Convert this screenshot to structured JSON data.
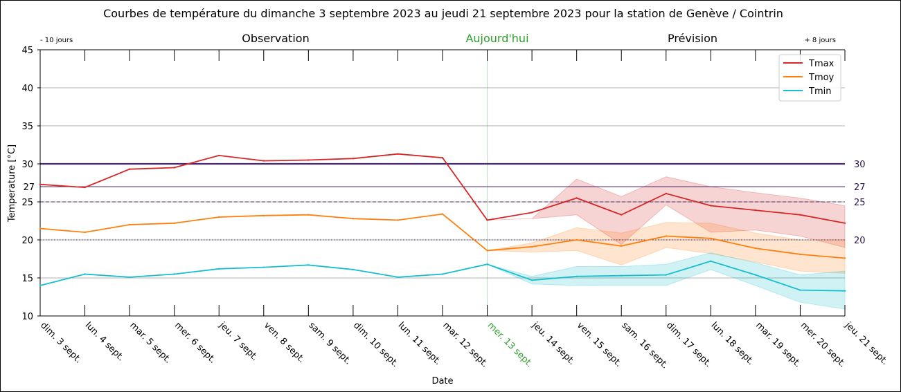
{
  "chart_data": {
    "type": "line",
    "title": "Courbes de température du dimanche 3 septembre 2023 au jeudi 21 septembre 2023 pour la station de Genève / Cointrin",
    "xlabel": "Date",
    "ylabel": "Temperature [°C]",
    "ylim": [
      10,
      45
    ],
    "yticks": [
      10,
      15,
      20,
      25,
      30,
      35,
      40,
      45
    ],
    "grid": true,
    "legend_position": "top-right",
    "categories": [
      "dim. 3 sept.",
      "lun. 4 sept.",
      "mar. 5 sept.",
      "mer. 6 sept.",
      "jeu. 7 sept.",
      "ven. 8 sept.",
      "sam. 9 sept.",
      "dim. 10 sept.",
      "lun. 11 sept.",
      "mar. 12 sept.",
      "mer. 13 sept.",
      "jeu. 14 sept.",
      "ven. 15 sept.",
      "sam. 16 sept.",
      "dim. 17 sept.",
      "lun. 18 sept.",
      "mar. 19 sept.",
      "mer. 20 sept.",
      "jeu. 21 sept."
    ],
    "today_index": 10,
    "section_labels": {
      "past_range": "- 10 jours",
      "observation": "Observation",
      "today": "Aujourd'hui",
      "forecast": "Prévision",
      "future_range": "+ 8 jours"
    },
    "series": [
      {
        "name": "Tmax",
        "color": "#d62728",
        "values": [
          27.3,
          26.9,
          29.3,
          29.5,
          31.1,
          30.4,
          30.5,
          30.7,
          31.3,
          30.8,
          22.6,
          23.6,
          25.5,
          23.3,
          26.1,
          24.5,
          23.9,
          23.3,
          22.2
        ],
        "band_upper": [
          null,
          null,
          null,
          null,
          null,
          null,
          null,
          null,
          null,
          null,
          22.6,
          22.8,
          28.0,
          25.7,
          28.3,
          27.0,
          26.2,
          25.5,
          24.5
        ],
        "band_lower": [
          null,
          null,
          null,
          null,
          null,
          null,
          null,
          null,
          null,
          null,
          22.6,
          22.8,
          23.3,
          19.4,
          24.6,
          21.0,
          21.3,
          20.5,
          19.0
        ]
      },
      {
        "name": "Tmoy",
        "color": "#ff7f0e",
        "values": [
          21.5,
          21.0,
          22.0,
          22.2,
          23.0,
          23.2,
          23.3,
          22.8,
          22.6,
          23.4,
          18.6,
          19.1,
          20.0,
          19.2,
          20.5,
          20.2,
          18.9,
          18.1,
          17.6
        ],
        "band_upper": [
          null,
          null,
          null,
          null,
          null,
          null,
          null,
          null,
          null,
          null,
          18.6,
          19.6,
          21.6,
          20.9,
          22.3,
          22.2,
          20.9,
          20.0,
          20.0
        ],
        "band_lower": [
          null,
          null,
          null,
          null,
          null,
          null,
          null,
          null,
          null,
          null,
          18.6,
          18.4,
          18.6,
          16.7,
          19.0,
          18.2,
          17.1,
          15.9,
          15.6
        ]
      },
      {
        "name": "Tmin",
        "color": "#17becf",
        "values": [
          14.0,
          15.5,
          15.1,
          15.5,
          16.2,
          16.4,
          16.7,
          16.1,
          15.1,
          15.5,
          16.8,
          14.7,
          15.2,
          15.3,
          15.4,
          17.2,
          15.4,
          13.4,
          13.3
        ],
        "band_upper": [
          null,
          null,
          null,
          null,
          null,
          null,
          null,
          null,
          null,
          null,
          16.8,
          15.2,
          16.5,
          16.5,
          16.8,
          18.3,
          17.0,
          15.4,
          15.9
        ],
        "band_lower": [
          null,
          null,
          null,
          null,
          null,
          null,
          null,
          null,
          null,
          null,
          16.8,
          14.2,
          14.0,
          14.0,
          14.0,
          16.1,
          14.0,
          11.8,
          10.9
        ]
      }
    ],
    "reference_lines": [
      {
        "value": 30,
        "label": "30",
        "color": "#4b2a6e",
        "style": "solid-thick"
      },
      {
        "value": 27,
        "label": "27",
        "color": "#4b2a6e",
        "style": "solid"
      },
      {
        "value": 25,
        "label": "25",
        "color": "#4b2a6e",
        "style": "dashed"
      },
      {
        "value": 20,
        "label": "20",
        "color": "#4b2a6e",
        "style": "dotted"
      }
    ],
    "colors": {
      "today": "#2ca02c",
      "grid": "#b0b0b0"
    }
  }
}
